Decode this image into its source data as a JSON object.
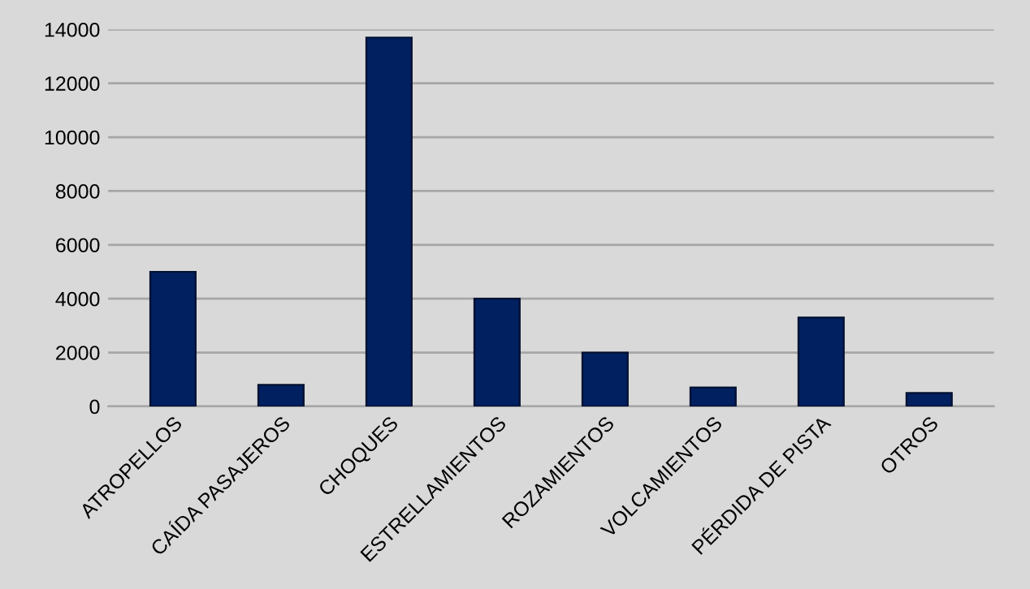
{
  "chart_data": {
    "type": "bar",
    "categories": [
      "ATROPELLOS",
      "CAÍDA PASAJEROS",
      "CHOQUES",
      "ESTRELLAMIENTOS",
      "ROZAMIENTOS",
      "VOLCAMIENTOS",
      "PÉRDIDA DE PISTA",
      "OTROS"
    ],
    "values": [
      5000,
      800,
      13700,
      4000,
      2000,
      700,
      3300,
      500
    ],
    "color": "#002060",
    "ylim": [
      0,
      14000
    ],
    "yticks": [
      0,
      2000,
      4000,
      6000,
      8000,
      10000,
      12000,
      14000
    ],
    "grid": "y",
    "legend": false
  }
}
